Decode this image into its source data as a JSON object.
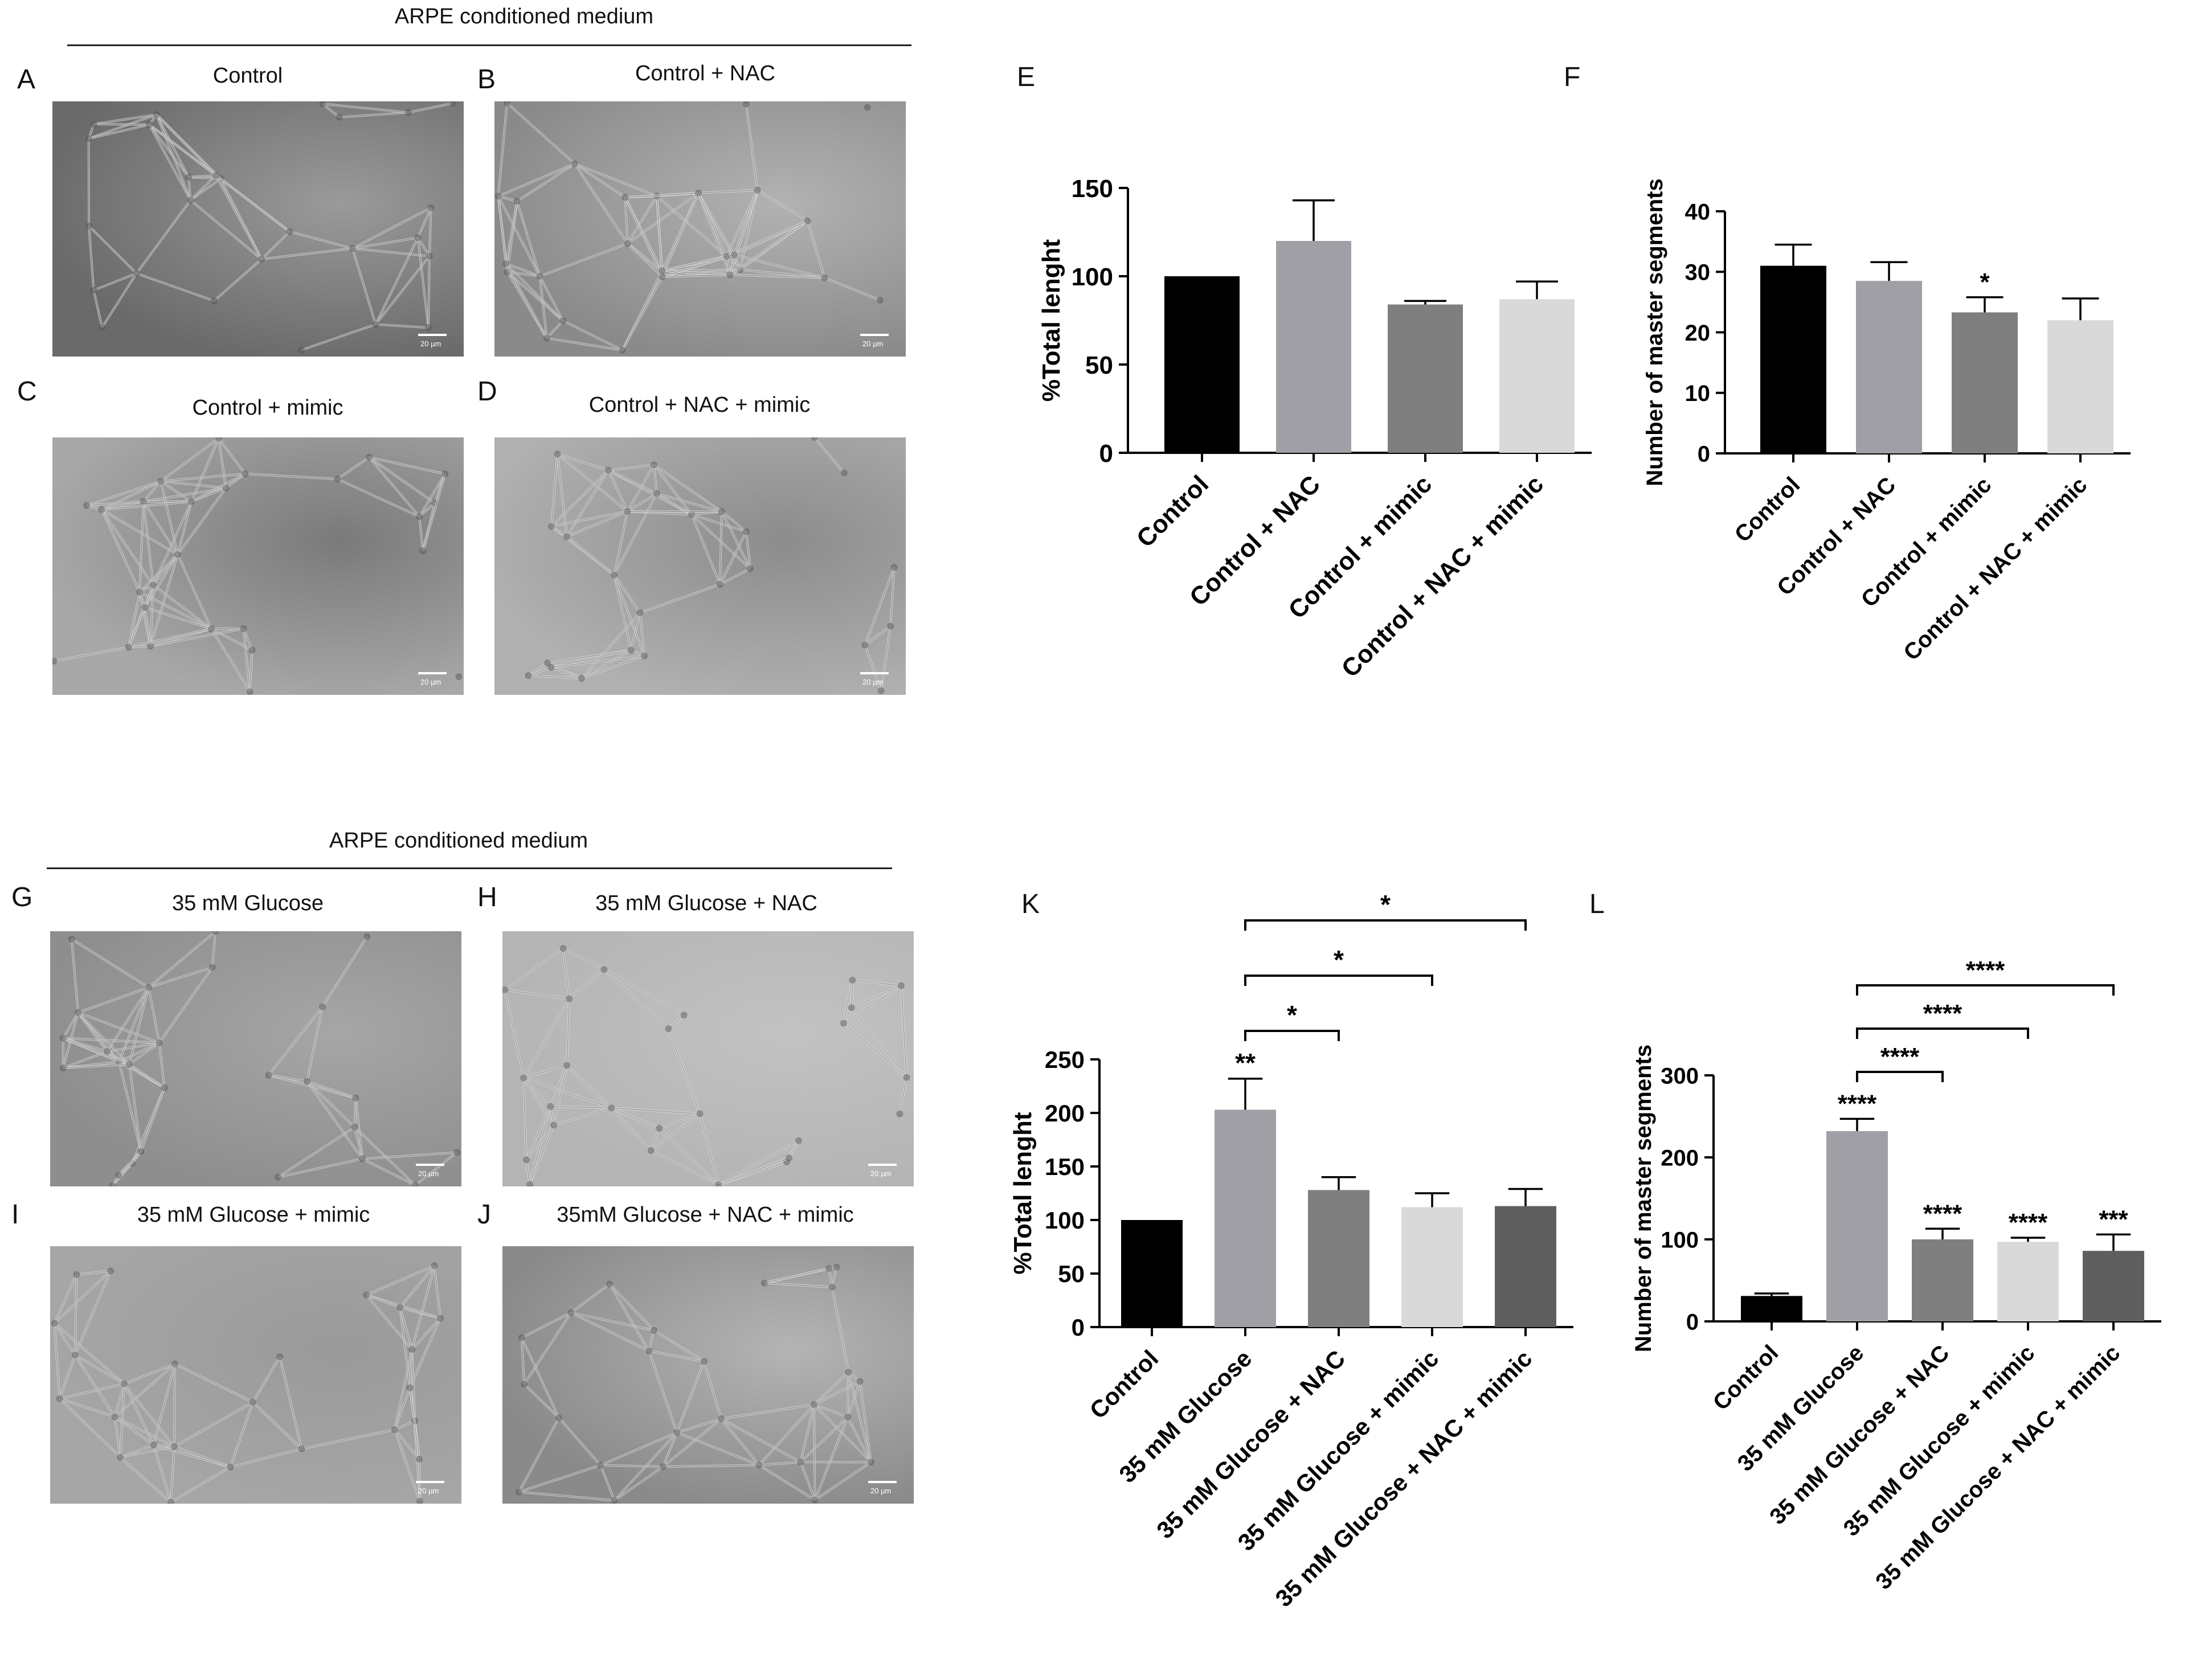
{
  "sections": [
    {
      "header": "ARPE conditioned medium"
    },
    {
      "header": "ARPE conditioned medium"
    }
  ],
  "micrographs": [
    {
      "letter": "A",
      "title": "Control",
      "scale_bar": "20 µm"
    },
    {
      "letter": "B",
      "title": "Control + NAC",
      "scale_bar": "20 µm"
    },
    {
      "letter": "C",
      "title": "Control + mimic",
      "scale_bar": "20 µm"
    },
    {
      "letter": "D",
      "title": "Control + NAC + mimic",
      "scale_bar": "20 µm"
    },
    {
      "letter": "G",
      "title": "35 mM Glucose",
      "scale_bar": "20 µm"
    },
    {
      "letter": "H",
      "title": "35 mM Glucose  + NAC",
      "scale_bar": "20 µm"
    },
    {
      "letter": "I",
      "title": "35 mM Glucose + mimic",
      "scale_bar": "20 µm"
    },
    {
      "letter": "J",
      "title": "35mM Glucose + NAC + mimic",
      "scale_bar": "20 µm"
    }
  ],
  "chart_data": [
    {
      "panel": "E",
      "type": "bar",
      "ylabel": "%Total lenght",
      "ylim": [
        0,
        150
      ],
      "yticks": [
        0,
        50,
        100,
        150
      ],
      "categories": [
        "Control",
        "Control + NAC",
        "Control + mimic",
        "Control + NAC + mimic"
      ],
      "values": [
        100,
        120,
        84,
        87
      ],
      "errors": [
        0,
        23,
        2,
        10
      ],
      "colors": [
        "#000000",
        "#a19fa6",
        "#7f7f7f",
        "#d9d9d9"
      ],
      "annotations": [
        "",
        "",
        "",
        ""
      ],
      "comparisons": []
    },
    {
      "panel": "F",
      "type": "bar",
      "ylabel": "Number of master segments",
      "ylim": [
        0,
        40
      ],
      "yticks": [
        0,
        10,
        20,
        30,
        40
      ],
      "categories": [
        "Control",
        "Control + NAC",
        "Control + mimic",
        "Control + NAC + mimic"
      ],
      "values": [
        31,
        28.5,
        23.3,
        22
      ],
      "errors": [
        3.5,
        3.1,
        2.5,
        3.6
      ],
      "colors": [
        "#000000",
        "#a19fa6",
        "#7f7f7f",
        "#d9d9d9"
      ],
      "annotations": [
        "",
        "",
        "*",
        ""
      ],
      "comparisons": []
    },
    {
      "panel": "K",
      "type": "bar",
      "ylabel": "%Total lenght",
      "ylim": [
        0,
        250
      ],
      "yticks": [
        0,
        50,
        100,
        150,
        200,
        250
      ],
      "categories": [
        "Control",
        "35 mM Glucose",
        "35 mM Glucose + NAC",
        "35 mM Glucose + mimic",
        "35 mM Glucose + NAC + mimic"
      ],
      "values": [
        100,
        203,
        128,
        112,
        113
      ],
      "errors": [
        0,
        29,
        12,
        13,
        16
      ],
      "colors": [
        "#000000",
        "#a19fa6",
        "#7f7f7f",
        "#d9d9d9",
        "#5f5f5f"
      ],
      "annotations": [
        "",
        "**",
        "",
        "",
        ""
      ],
      "comparisons": [
        {
          "from": 1,
          "to": 2,
          "label": "*"
        },
        {
          "from": 1,
          "to": 3,
          "label": "*"
        },
        {
          "from": 1,
          "to": 4,
          "label": "*"
        }
      ]
    },
    {
      "panel": "L",
      "type": "bar",
      "ylabel": "Number of master segments",
      "ylim": [
        0,
        300
      ],
      "yticks": [
        0,
        100,
        200,
        300
      ],
      "categories": [
        "Control",
        "35 mM Glucose",
        "35 mM Glucose + NAC",
        "35 mM Glucose + mimic",
        "35 mM Glucose + NAC + mimic"
      ],
      "values": [
        31,
        232,
        100,
        97,
        86
      ],
      "errors": [
        3,
        15,
        13,
        5,
        20
      ],
      "colors": [
        "#000000",
        "#a19fa6",
        "#7f7f7f",
        "#d9d9d9",
        "#5f5f5f"
      ],
      "annotations": [
        "",
        "****",
        "****",
        "****",
        "***"
      ],
      "comparisons": [
        {
          "from": 1,
          "to": 2,
          "label": "****"
        },
        {
          "from": 1,
          "to": 3,
          "label": "****"
        },
        {
          "from": 1,
          "to": 4,
          "label": "****"
        }
      ]
    }
  ]
}
